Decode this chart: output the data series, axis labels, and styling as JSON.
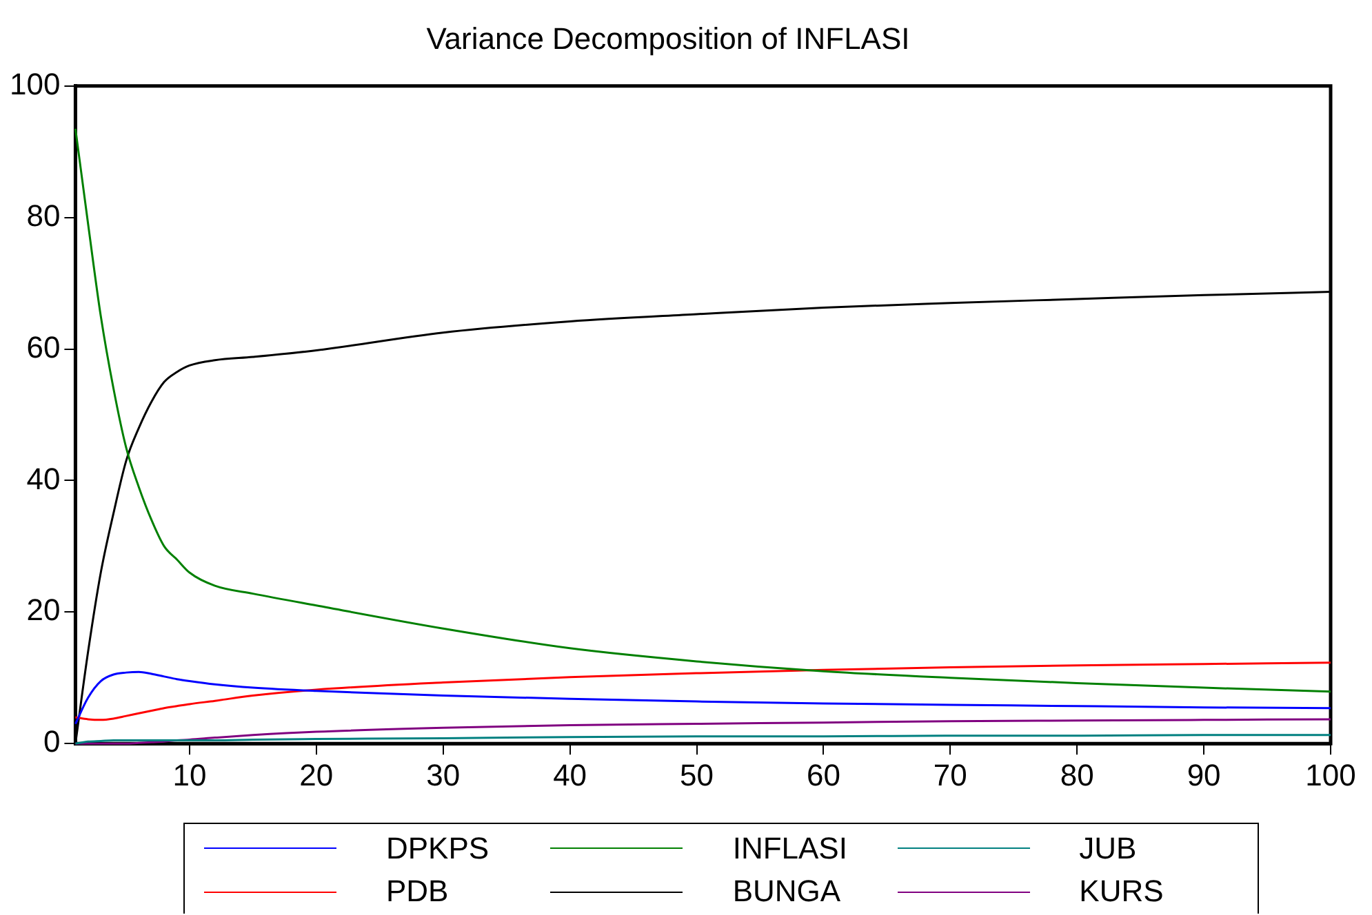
{
  "chart_data": {
    "type": "line",
    "title": "Variance Decomposition of INFLASI",
    "x": [
      1,
      2,
      3,
      4,
      5,
      6,
      7,
      8,
      9,
      10,
      12,
      15,
      20,
      30,
      40,
      50,
      60,
      70,
      80,
      90,
      100
    ],
    "series": [
      {
        "name": "DPKPS",
        "color": "#0000ff",
        "values": [
          3,
          7,
          9.5,
          10.5,
          10.8,
          10.9,
          10.6,
          10.2,
          9.8,
          9.5,
          9,
          8.5,
          8,
          7.3,
          6.8,
          6.4,
          6.1,
          5.9,
          5.7,
          5.5,
          5.4
        ]
      },
      {
        "name": "INFLASI",
        "color": "#008000",
        "values": [
          93.5,
          79,
          65,
          54,
          45,
          39,
          34,
          30,
          28,
          26,
          24,
          22.8,
          21,
          17.5,
          14.5,
          12.5,
          11,
          10,
          9.2,
          8.5,
          7.9
        ]
      },
      {
        "name": "JUB",
        "color": "#008080",
        "values": [
          0,
          0.3,
          0.4,
          0.5,
          0.5,
          0.5,
          0.5,
          0.5,
          0.5,
          0.5,
          0.5,
          0.6,
          0.7,
          0.8,
          1,
          1.1,
          1.1,
          1.2,
          1.2,
          1.3,
          1.3
        ]
      },
      {
        "name": "PDB",
        "color": "#ff0000",
        "values": [
          4,
          3.7,
          3.6,
          3.8,
          4.2,
          4.6,
          5,
          5.4,
          5.7,
          6,
          6.5,
          7.3,
          8.2,
          9.3,
          10.1,
          10.7,
          11.2,
          11.6,
          11.9,
          12.1,
          12.3
        ]
      },
      {
        "name": "BUNGA",
        "color": "#000000",
        "values": [
          0,
          14,
          26,
          35,
          43,
          48,
          52,
          55,
          56.5,
          57.5,
          58.3,
          58.8,
          59.8,
          62.5,
          64.2,
          65.3,
          66.3,
          67,
          67.6,
          68.2,
          68.7
        ]
      },
      {
        "name": "KURS",
        "color": "#800080",
        "values": [
          0,
          0,
          0,
          0,
          0,
          0.1,
          0.2,
          0.3,
          0.5,
          0.6,
          0.9,
          1.3,
          1.8,
          2.4,
          2.8,
          3,
          3.2,
          3.4,
          3.5,
          3.6,
          3.7
        ]
      }
    ],
    "xlim": [
      1,
      100
    ],
    "xticks": [
      10,
      20,
      30,
      40,
      50,
      60,
      70,
      80,
      90,
      100
    ],
    "ylim": [
      0,
      100
    ],
    "yticks": [
      0,
      20,
      40,
      60,
      80,
      100
    ],
    "grid": false,
    "legend": "bottom",
    "marker": "none",
    "line_style": "solid"
  }
}
